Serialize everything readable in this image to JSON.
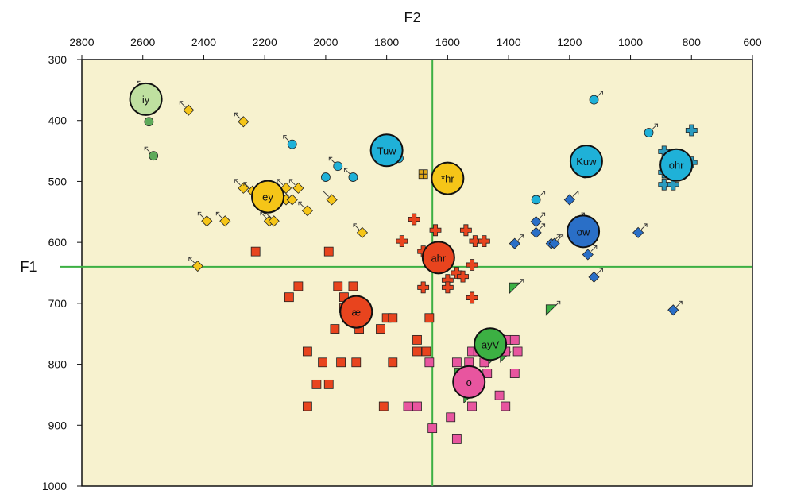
{
  "chart_data": {
    "type": "scatter",
    "title": "",
    "xlabel": "F2",
    "ylabel": "F1",
    "x_reversed": true,
    "y_reversed": true,
    "xlim": [
      2800,
      600
    ],
    "ylim": [
      300,
      1000
    ],
    "x_ticks": [
      "2800",
      "2600",
      "2400",
      "2200",
      "2000",
      "1800",
      "1600",
      "1400",
      "1200",
      "1000",
      "800",
      "600"
    ],
    "y_ticks": [
      "300",
      "400",
      "500",
      "600",
      "700",
      "800",
      "900",
      "1000"
    ],
    "x_axis_position": "top",
    "background": "#f7f2cf",
    "crosshair": {
      "F2": 1650,
      "F1": 640,
      "color": "#3cb043"
    },
    "series": [
      {
        "marker": "circle",
        "color": "#5eaa5a",
        "points": [
          {
            "F2": 2590,
            "F1": 350,
            "arrow": true
          },
          {
            "F2": 2580,
            "F1": 402,
            "arrow": false
          },
          {
            "F2": 2565,
            "F1": 458,
            "arrow": true
          }
        ]
      },
      {
        "marker": "diamond",
        "color": "#f5c518",
        "points": [
          {
            "F2": 2450,
            "F1": 383,
            "arrow": true
          },
          {
            "F2": 2270,
            "F1": 402,
            "arrow": true
          },
          {
            "F2": 2270,
            "F1": 511,
            "arrow": true
          },
          {
            "F2": 2240,
            "F1": 516,
            "arrow": true
          },
          {
            "F2": 2200,
            "F1": 545,
            "arrow": true
          },
          {
            "F2": 2190,
            "F1": 540,
            "arrow": true
          },
          {
            "F2": 2185,
            "F1": 565,
            "arrow": true
          },
          {
            "F2": 2170,
            "F1": 565,
            "arrow": true
          },
          {
            "F2": 2130,
            "F1": 511,
            "arrow": true
          },
          {
            "F2": 2130,
            "F1": 530,
            "arrow": true
          },
          {
            "F2": 2110,
            "F1": 530,
            "arrow": true
          },
          {
            "F2": 2090,
            "F1": 511,
            "arrow": true
          },
          {
            "F2": 2060,
            "F1": 548,
            "arrow": true
          },
          {
            "F2": 1980,
            "F1": 530,
            "arrow": true
          },
          {
            "F2": 1880,
            "F1": 584,
            "arrow": true
          },
          {
            "F2": 2390,
            "F1": 565,
            "arrow": true
          },
          {
            "F2": 2330,
            "F1": 565,
            "arrow": true
          },
          {
            "F2": 2420,
            "F1": 639,
            "arrow": true
          }
        ]
      },
      {
        "marker": "circle",
        "color": "#1fb1d8",
        "points": [
          {
            "F2": 2110,
            "F1": 439,
            "arrow": true
          },
          {
            "F2": 2000,
            "F1": 493,
            "arrow": false
          },
          {
            "F2": 1960,
            "F1": 475,
            "arrow": true
          },
          {
            "F2": 1910,
            "F1": 493,
            "arrow": true
          },
          {
            "F2": 1760,
            "F1": 462,
            "arrow": true
          },
          {
            "F2": 1310,
            "F1": 530,
            "arrow": true
          },
          {
            "F2": 1120,
            "F1": 366,
            "arrow": true
          },
          {
            "F2": 940,
            "F1": 420,
            "arrow": true
          },
          {
            "F2": 1150,
            "F1": 487,
            "arrow": false
          }
        ]
      },
      {
        "marker": "diamond",
        "color": "#2a6fc7",
        "points": [
          {
            "F2": 1380,
            "F1": 602,
            "arrow": true
          },
          {
            "F2": 1310,
            "F1": 566,
            "arrow": true
          },
          {
            "F2": 1310,
            "F1": 584,
            "arrow": true
          },
          {
            "F2": 1260,
            "F1": 602,
            "arrow": true
          },
          {
            "F2": 1250,
            "F1": 602,
            "arrow": true
          },
          {
            "F2": 1200,
            "F1": 530,
            "arrow": true
          },
          {
            "F2": 1180,
            "F1": 566,
            "arrow": true
          },
          {
            "F2": 1140,
            "F1": 620,
            "arrow": true
          },
          {
            "F2": 1120,
            "F1": 657,
            "arrow": true
          },
          {
            "F2": 1130,
            "F1": 485,
            "arrow": true
          },
          {
            "F2": 975,
            "F1": 584,
            "arrow": true
          },
          {
            "F2": 860,
            "F1": 711,
            "arrow": true
          }
        ]
      },
      {
        "marker": "cross",
        "color": "#2a9bbf",
        "points": [
          {
            "F2": 800,
            "F1": 416,
            "arrow": false
          },
          {
            "F2": 890,
            "F1": 451,
            "arrow": false
          },
          {
            "F2": 890,
            "F1": 485,
            "arrow": false
          },
          {
            "F2": 890,
            "F1": 505,
            "arrow": false
          },
          {
            "F2": 860,
            "F1": 505,
            "arrow": false
          },
          {
            "F2": 800,
            "F1": 469,
            "arrow": false
          }
        ]
      },
      {
        "marker": "square-cross",
        "color": "#e0a818",
        "points": [
          {
            "F2": 1680,
            "F1": 488,
            "arrow": false
          },
          {
            "F2": 1580,
            "F1": 505,
            "arrow": false
          }
        ]
      },
      {
        "marker": "cross",
        "color": "#e8441e",
        "points": [
          {
            "F2": 1710,
            "F1": 562,
            "arrow": false
          },
          {
            "F2": 1750,
            "F1": 598,
            "arrow": false
          },
          {
            "F2": 1640,
            "F1": 580,
            "arrow": false
          },
          {
            "F2": 1540,
            "F1": 580,
            "arrow": false
          },
          {
            "F2": 1510,
            "F1": 598,
            "arrow": false
          },
          {
            "F2": 1480,
            "F1": 598,
            "arrow": false
          },
          {
            "F2": 1680,
            "F1": 615,
            "arrow": false
          },
          {
            "F2": 1570,
            "F1": 650,
            "arrow": false
          },
          {
            "F2": 1550,
            "F1": 656,
            "arrow": false
          },
          {
            "F2": 1600,
            "F1": 662,
            "arrow": false
          },
          {
            "F2": 1600,
            "F1": 674,
            "arrow": false
          },
          {
            "F2": 1680,
            "F1": 674,
            "arrow": false
          },
          {
            "F2": 1520,
            "F1": 637,
            "arrow": false
          },
          {
            "F2": 1520,
            "F1": 691,
            "arrow": false
          }
        ]
      },
      {
        "marker": "square",
        "color": "#e8441e",
        "points": [
          {
            "F2": 2230,
            "F1": 615,
            "arrow": false
          },
          {
            "F2": 1990,
            "F1": 615,
            "arrow": false
          },
          {
            "F2": 2090,
            "F1": 672,
            "arrow": false
          },
          {
            "F2": 2120,
            "F1": 690,
            "arrow": false
          },
          {
            "F2": 1960,
            "F1": 672,
            "arrow": false
          },
          {
            "F2": 1910,
            "F1": 672,
            "arrow": false
          },
          {
            "F2": 1940,
            "F1": 690,
            "arrow": false
          },
          {
            "F2": 1940,
            "F1": 708,
            "arrow": false
          },
          {
            "F2": 1930,
            "F1": 724,
            "arrow": false
          },
          {
            "F2": 1890,
            "F1": 742,
            "arrow": false
          },
          {
            "F2": 1970,
            "F1": 742,
            "arrow": false
          },
          {
            "F2": 1800,
            "F1": 724,
            "arrow": false
          },
          {
            "F2": 1780,
            "F1": 724,
            "arrow": false
          },
          {
            "F2": 1820,
            "F1": 742,
            "arrow": false
          },
          {
            "F2": 1660,
            "F1": 724,
            "arrow": false
          },
          {
            "F2": 1700,
            "F1": 760,
            "arrow": false
          },
          {
            "F2": 1700,
            "F1": 779,
            "arrow": false
          },
          {
            "F2": 1670,
            "F1": 779,
            "arrow": false
          },
          {
            "F2": 2060,
            "F1": 779,
            "arrow": false
          },
          {
            "F2": 2010,
            "F1": 797,
            "arrow": false
          },
          {
            "F2": 1950,
            "F1": 797,
            "arrow": false
          },
          {
            "F2": 1900,
            "F1": 797,
            "arrow": false
          },
          {
            "F2": 1780,
            "F1": 797,
            "arrow": false
          },
          {
            "F2": 2030,
            "F1": 833,
            "arrow": false
          },
          {
            "F2": 1990,
            "F1": 833,
            "arrow": false
          },
          {
            "F2": 2060,
            "F1": 869,
            "arrow": false
          },
          {
            "F2": 1810,
            "F1": 869,
            "arrow": false
          }
        ]
      },
      {
        "marker": "triangle",
        "color": "#3cb043",
        "points": [
          {
            "F2": 1380,
            "F1": 675,
            "arrow": true
          },
          {
            "F2": 1260,
            "F1": 711,
            "arrow": true
          },
          {
            "F2": 1450,
            "F1": 788,
            "arrow": false
          },
          {
            "F2": 1460,
            "F1": 797,
            "arrow": false
          },
          {
            "F2": 1410,
            "F1": 788,
            "arrow": false
          },
          {
            "F2": 1560,
            "F1": 815,
            "arrow": true
          },
          {
            "F2": 1530,
            "F1": 855,
            "arrow": true
          }
        ]
      },
      {
        "marker": "square",
        "color": "#e8559f",
        "points": [
          {
            "F2": 1460,
            "F1": 760,
            "arrow": false
          },
          {
            "F2": 1420,
            "F1": 760,
            "arrow": false
          },
          {
            "F2": 1400,
            "F1": 760,
            "arrow": false
          },
          {
            "F2": 1380,
            "F1": 760,
            "arrow": false
          },
          {
            "F2": 1520,
            "F1": 779,
            "arrow": false
          },
          {
            "F2": 1500,
            "F1": 779,
            "arrow": false
          },
          {
            "F2": 1440,
            "F1": 779,
            "arrow": false
          },
          {
            "F2": 1410,
            "F1": 779,
            "arrow": false
          },
          {
            "F2": 1370,
            "F1": 779,
            "arrow": false
          },
          {
            "F2": 1660,
            "F1": 797,
            "arrow": false
          },
          {
            "F2": 1570,
            "F1": 797,
            "arrow": false
          },
          {
            "F2": 1530,
            "F1": 797,
            "arrow": false
          },
          {
            "F2": 1480,
            "F1": 797,
            "arrow": false
          },
          {
            "F2": 1380,
            "F1": 815,
            "arrow": false
          },
          {
            "F2": 1470,
            "F1": 815,
            "arrow": false
          },
          {
            "F2": 1430,
            "F1": 851,
            "arrow": false
          },
          {
            "F2": 1410,
            "F1": 869,
            "arrow": false
          },
          {
            "F2": 1520,
            "F1": 869,
            "arrow": false
          },
          {
            "F2": 1730,
            "F1": 869,
            "arrow": false
          },
          {
            "F2": 1700,
            "F1": 869,
            "arrow": false
          },
          {
            "F2": 1590,
            "F1": 887,
            "arrow": false
          },
          {
            "F2": 1650,
            "F1": 905,
            "arrow": false
          },
          {
            "F2": 1570,
            "F1": 923,
            "arrow": false
          }
        ]
      }
    ],
    "means": [
      {
        "label": "iy",
        "F2": 2590,
        "F1": 365,
        "color": "#bfe0a0"
      },
      {
        "label": "ey",
        "F2": 2190,
        "F1": 525,
        "color": "#f5c518"
      },
      {
        "label": "Tuw",
        "F2": 1800,
        "F1": 449,
        "color": "#1fb1d8"
      },
      {
        "label": "*hr",
        "F2": 1600,
        "F1": 495,
        "color": "#f5c518"
      },
      {
        "label": "ahr",
        "F2": 1630,
        "F1": 625,
        "color": "#e8441e"
      },
      {
        "label": "æ",
        "F2": 1900,
        "F1": 714,
        "color": "#e8441e"
      },
      {
        "label": "o",
        "F2": 1530,
        "F1": 829,
        "color": "#e8559f"
      },
      {
        "label": "ayV",
        "F2": 1460,
        "F1": 767,
        "color": "#3cb043"
      },
      {
        "label": "Kuw",
        "F2": 1145,
        "F1": 467,
        "color": "#1fb1d8"
      },
      {
        "label": "ow",
        "F2": 1155,
        "F1": 582,
        "color": "#2a6fc7"
      },
      {
        "label": "ohr",
        "F2": 850,
        "F1": 473,
        "color": "#1fb1d8"
      }
    ]
  }
}
